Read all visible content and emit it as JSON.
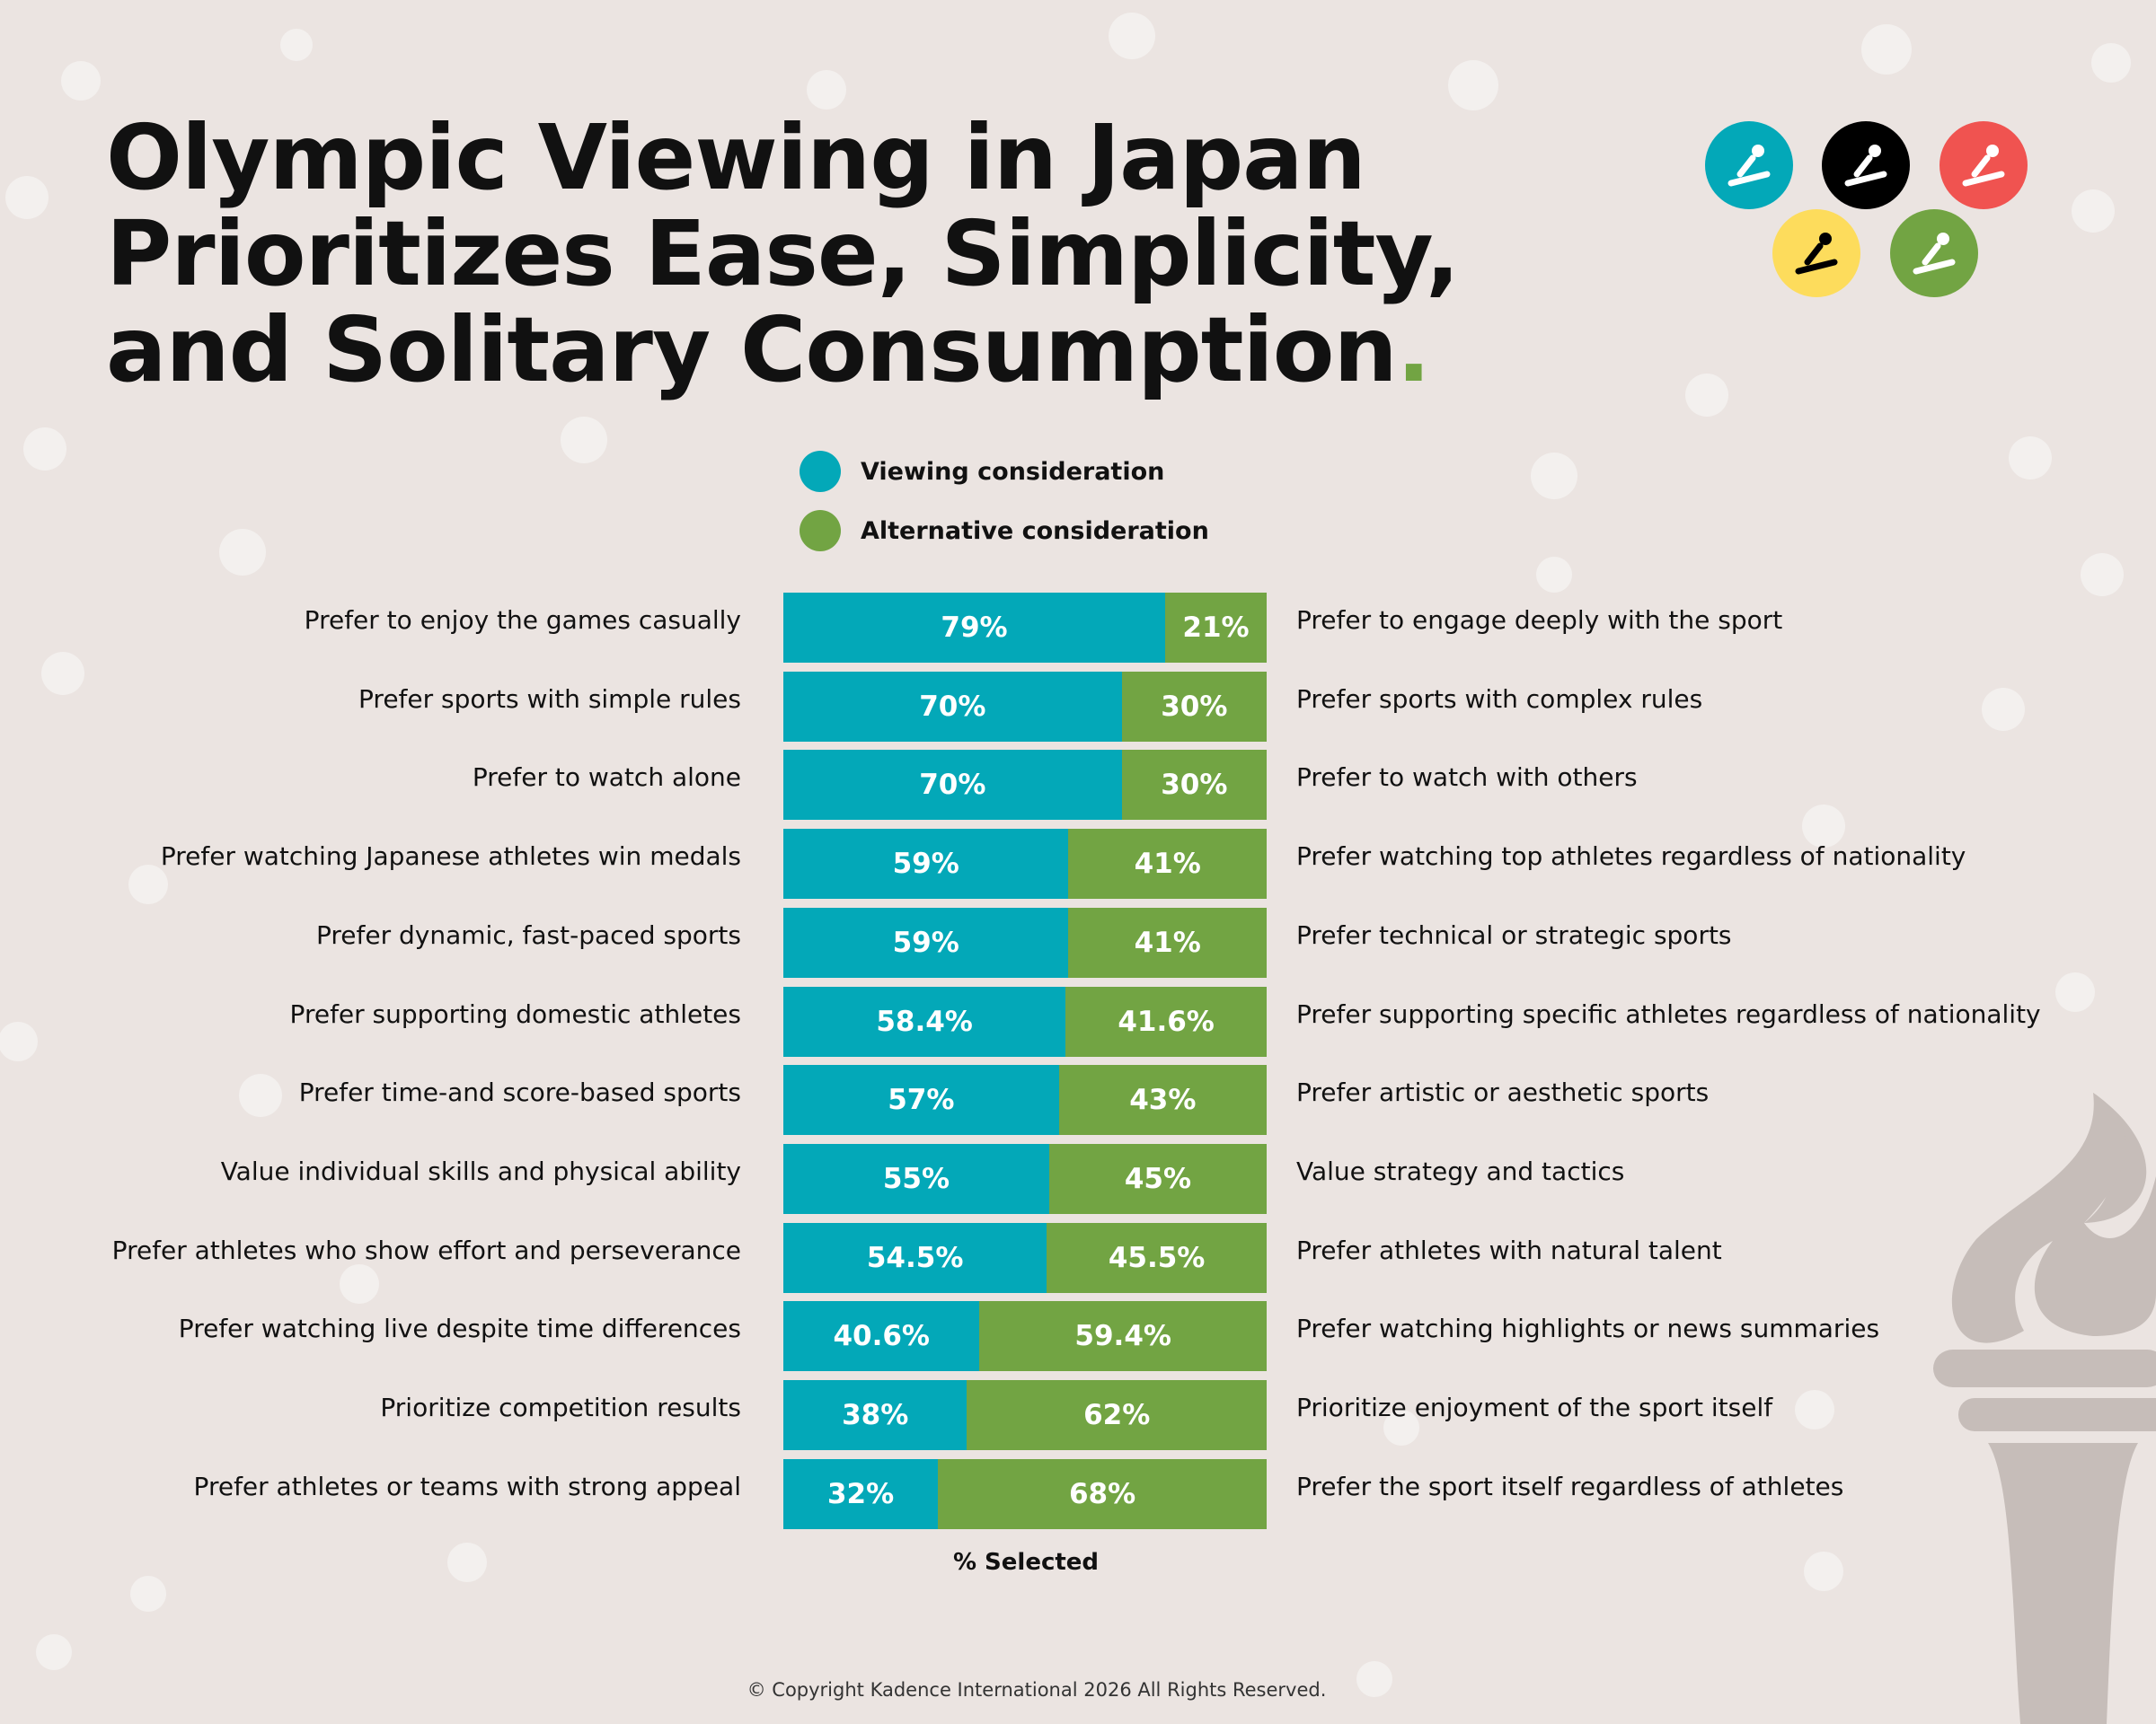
{
  "title": "Olympic Viewing in Japan Prioritizes Ease, Simplicity, and Solitary Consumption",
  "title_dot": ".",
  "icons": [
    {
      "name": "curling-icon",
      "color": "#03a8b8"
    },
    {
      "name": "snowboard-icon",
      "color": "#000000"
    },
    {
      "name": "speed-skating-icon",
      "color": "#f05350"
    },
    {
      "name": "figure-skating-icon",
      "color": "#fddc5c"
    },
    {
      "name": "ski-jumping-icon",
      "color": "#72a443"
    }
  ],
  "chart_data": {
    "type": "bar",
    "stacked": true,
    "orientation": "horizontal",
    "xlabel": "% Selected",
    "xlim": [
      0,
      100
    ],
    "legend_position": "top",
    "series": [
      {
        "name": "Viewing consideration",
        "color": "#03a8b8",
        "values": [
          79,
          70,
          70,
          59,
          59,
          58.4,
          57,
          55,
          54.5,
          40.6,
          38,
          32
        ],
        "labels": [
          "79%",
          "70%",
          "70%",
          "59%",
          "59%",
          "58.4%",
          "57%",
          "55%",
          "54.5%",
          "40.6%",
          "38%",
          "32%"
        ]
      },
      {
        "name": "Alternative consideration",
        "color": "#72a443",
        "values": [
          21,
          30,
          30,
          41,
          41,
          41.6,
          43,
          45,
          45.5,
          59.4,
          62,
          68
        ],
        "labels": [
          "21%",
          "30%",
          "30%",
          "41%",
          "41%",
          "41.6%",
          "43%",
          "45%",
          "45.5%",
          "59.4%",
          "62%",
          "68%"
        ]
      }
    ],
    "categories_left": [
      "Prefer to enjoy the games casually",
      "Prefer sports with simple rules",
      "Prefer to watch alone",
      "Prefer watching Japanese athletes win medals",
      "Prefer dynamic, fast-paced sports",
      "Prefer supporting domestic athletes",
      "Prefer time-and score-based sports",
      "Value individual skills and physical ability",
      "Prefer athletes who show effort and perseverance",
      "Prefer watching live despite time differences",
      "Prioritize competition results",
      "Prefer athletes or teams with strong appeal"
    ],
    "categories_right": [
      "Prefer to engage deeply with the sport",
      "Prefer sports with complex rules",
      "Prefer to watch with others",
      "Prefer watching top athletes regardless of nationality",
      "Prefer technical or strategic sports",
      "Prefer supporting specific athletes regardless of nationality",
      "Prefer artistic or aesthetic sports",
      "Value strategy and tactics",
      "Prefer athletes with natural talent",
      "Prefer watching highlights or news summaries",
      "Prioritize enjoyment of the sport itself",
      "Prefer the sport itself regardless of athletes"
    ]
  },
  "copyright": "© Copyright Kadence International 2026 All Rights Reserved."
}
